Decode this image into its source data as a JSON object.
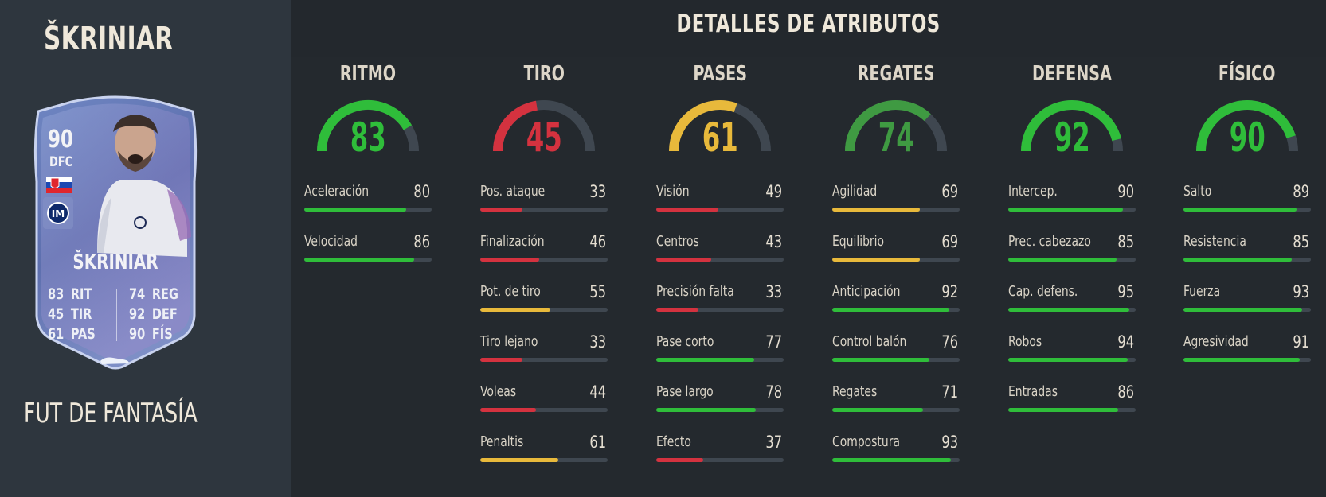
{
  "player": {
    "title": "ŠKRINIAR",
    "version": "FUT DE FANTASÍA"
  },
  "card": {
    "rating": "90",
    "position": "DFC",
    "name": "ŠKRINIAR",
    "nation": "Slovakia flag",
    "club": "Inter club badge",
    "stats_left": [
      {
        "value": "83",
        "label": "RIT"
      },
      {
        "value": "45",
        "label": "TIR"
      },
      {
        "value": "61",
        "label": "PAS"
      }
    ],
    "stats_right": [
      {
        "value": "74",
        "label": "REG"
      },
      {
        "value": "92",
        "label": "DEF"
      },
      {
        "value": "90",
        "label": "FÍS"
      }
    ],
    "boot_icon": "boot-icon"
  },
  "panel": {
    "title": "DETALLES DE ATRIBUTOS"
  },
  "colors": {
    "high": "#2fbd3a",
    "mid": "#e8b93b",
    "low": "#d4323f",
    "midgreen": "#3f9a42",
    "track": "#3f4750"
  },
  "categories": [
    {
      "title": "RITMO",
      "value": "83",
      "color": "#2fbd3a",
      "stats": [
        {
          "name": "Aceleración",
          "value": "80"
        },
        {
          "name": "Velocidad",
          "value": "86"
        }
      ]
    },
    {
      "title": "TIRO",
      "value": "45",
      "color": "#d4323f",
      "stats": [
        {
          "name": "Pos. ataque",
          "value": "33"
        },
        {
          "name": "Finalización",
          "value": "46"
        },
        {
          "name": "Pot. de tiro",
          "value": "55"
        },
        {
          "name": "Tiro lejano",
          "value": "33"
        },
        {
          "name": "Voleas",
          "value": "44"
        },
        {
          "name": "Penaltis",
          "value": "61"
        }
      ]
    },
    {
      "title": "PASES",
      "value": "61",
      "color": "#e8b93b",
      "stats": [
        {
          "name": "Visión",
          "value": "49"
        },
        {
          "name": "Centros",
          "value": "43"
        },
        {
          "name": "Precisión falta",
          "value": "33"
        },
        {
          "name": "Pase corto",
          "value": "77"
        },
        {
          "name": "Pase largo",
          "value": "78"
        },
        {
          "name": "Efecto",
          "value": "37"
        }
      ]
    },
    {
      "title": "REGATES",
      "value": "74",
      "color": "#3f9a42",
      "stats": [
        {
          "name": "Agilidad",
          "value": "69"
        },
        {
          "name": "Equilibrio",
          "value": "69"
        },
        {
          "name": "Anticipación",
          "value": "92"
        },
        {
          "name": "Control balón",
          "value": "76"
        },
        {
          "name": "Regates",
          "value": "71"
        },
        {
          "name": "Compostura",
          "value": "93"
        }
      ]
    },
    {
      "title": "DEFENSA",
      "value": "92",
      "color": "#2fbd3a",
      "stats": [
        {
          "name": "Intercep.",
          "value": "90"
        },
        {
          "name": "Prec. cabezazo",
          "value": "85"
        },
        {
          "name": "Cap. defens.",
          "value": "95"
        },
        {
          "name": "Robos",
          "value": "94"
        },
        {
          "name": "Entradas",
          "value": "86"
        }
      ]
    },
    {
      "title": "FÍSICO",
      "value": "90",
      "color": "#2fbd3a",
      "stats": [
        {
          "name": "Salto",
          "value": "89"
        },
        {
          "name": "Resistencia",
          "value": "85"
        },
        {
          "name": "Fuerza",
          "value": "93"
        },
        {
          "name": "Agresividad",
          "value": "91"
        }
      ]
    }
  ]
}
